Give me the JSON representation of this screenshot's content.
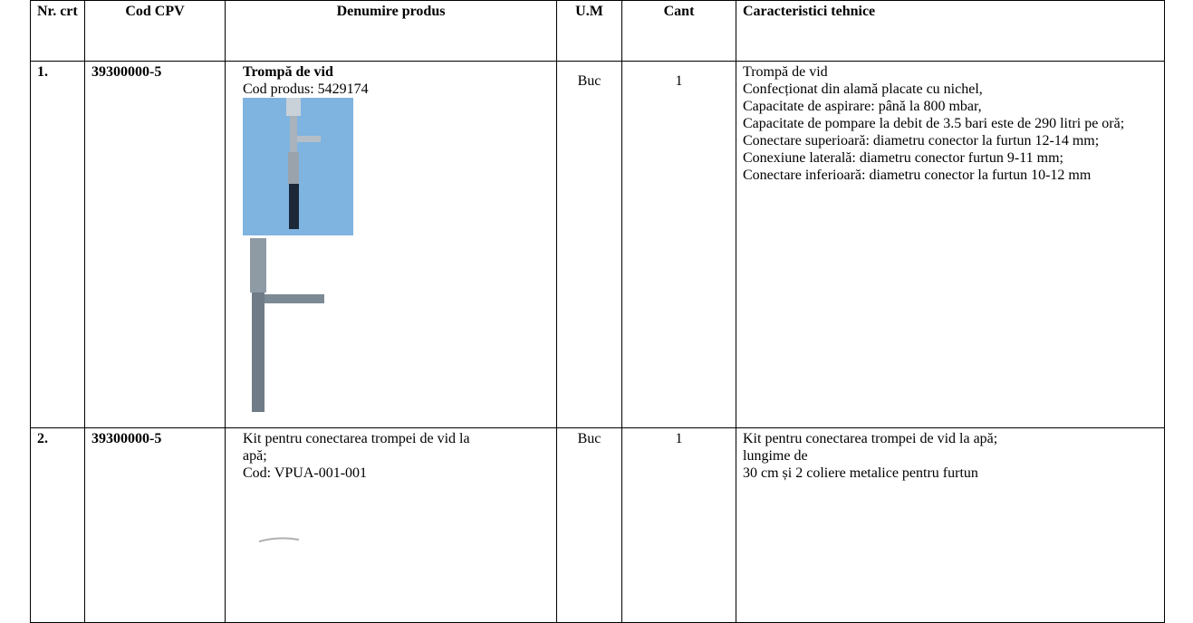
{
  "table": {
    "header": [
      "Nr. crt",
      "Cod CPV",
      "Denumire produs",
      "U.M",
      "Cant",
      "Caracteristici tehnice"
    ],
    "rows": [
      {
        "nr": "1.",
        "cpv": "39300000-5",
        "name": "Trompă de vid",
        "code": "Cod produs: 5429174",
        "um": "Buc",
        "cant": "1",
        "specs": [
          "Trompă de vid",
          "Confecționat din alamă placate cu nichel,",
          "Capacitate de aspirare: până la 800 mbar,",
          "Capacitate de pompare la debit de 3.5 bari este de 290 litri pe oră;",
          "Conectare superioară: diametru conector la furtun 12-14 mm;",
          "Conexiune laterală: diametru conector furtun 9-11 mm;",
          "Conectare inferioară: diametru conector la furtun 10-12 mm"
        ]
      },
      {
        "nr": "2.",
        "cpv": "39300000-5",
        "name": "Kit pentru conectarea trompei de vid la apă;",
        "code": "Cod: VPUA-001-001",
        "um": "Buc",
        "cant": "1",
        "specs": [
          "Kit pentru conectarea trompei de vid la apă;",
          "lungime de",
          "30 cm și 2 coliere metalice pentru furtun"
        ]
      }
    ]
  }
}
